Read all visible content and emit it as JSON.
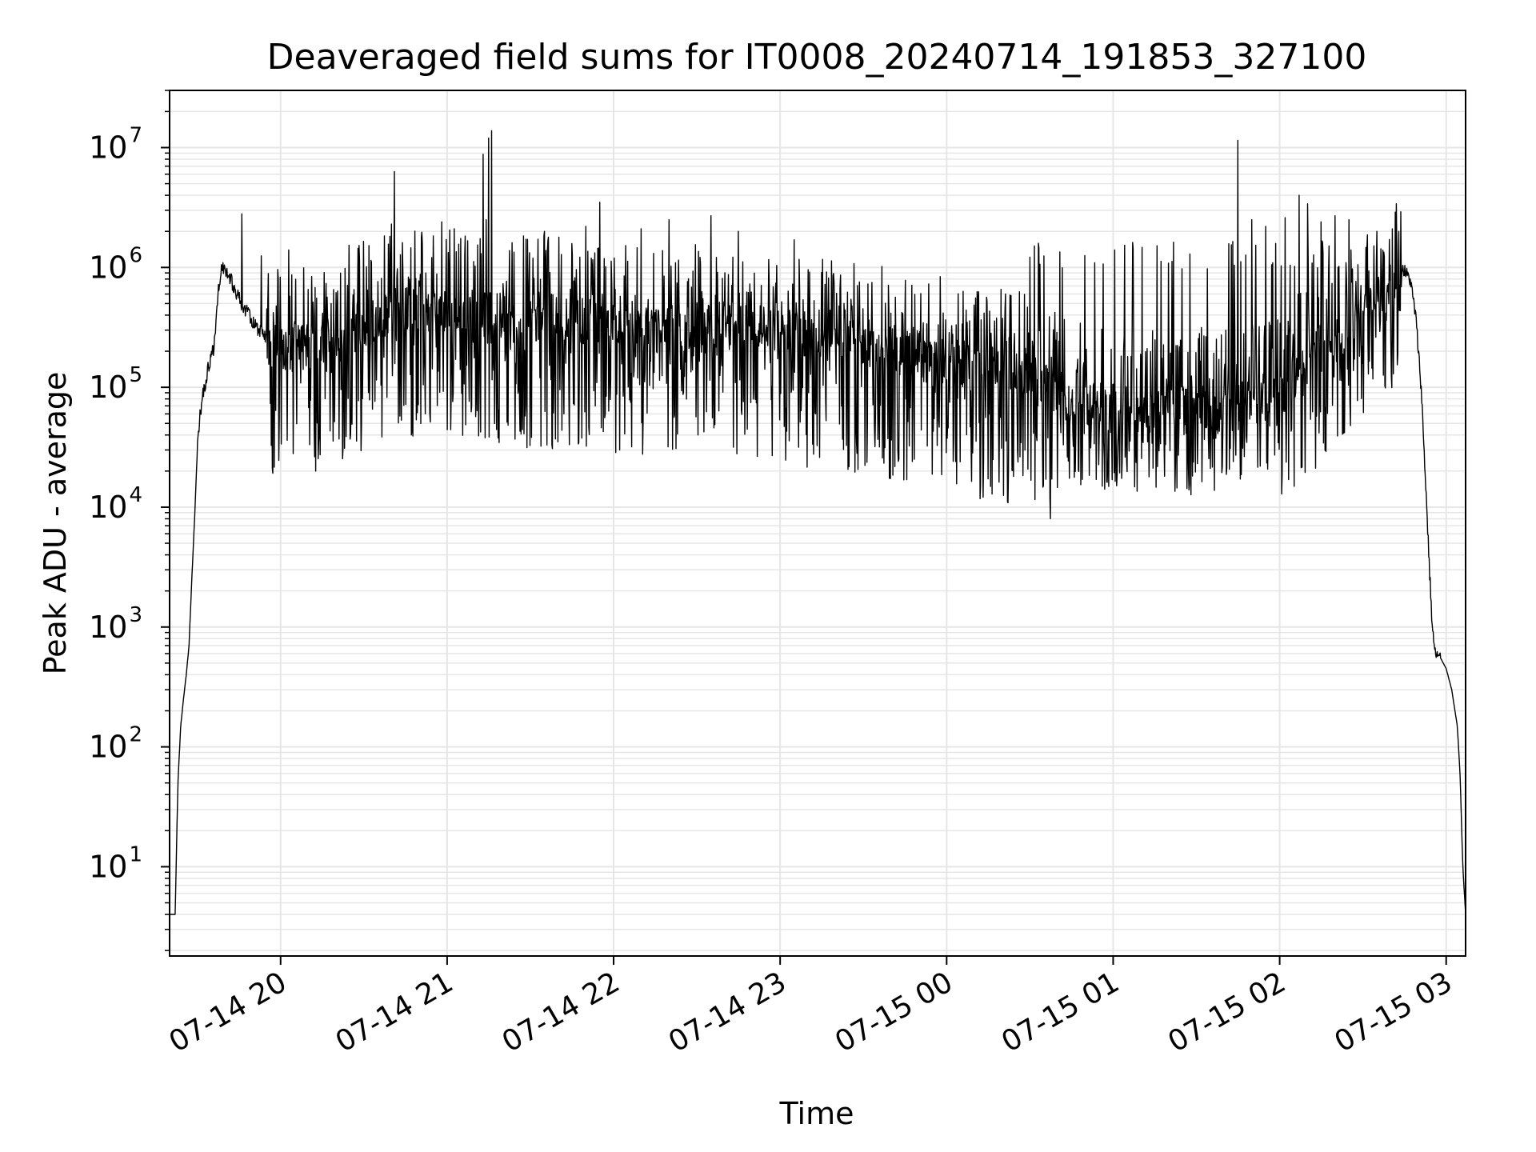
{
  "chart_data": {
    "type": "line",
    "title": "Deaveraged field sums for IT0008_20240714_191853_327100",
    "xlabel": "Time",
    "ylabel": "Peak ADU - average",
    "yscale": "log",
    "xlim": [
      "2024-07-14 19:20",
      "2024-07-15 03:07"
    ],
    "ylim": [
      1.8,
      30000000
    ],
    "x_ticks": [
      "2024-07-14 20:00",
      "2024-07-14 21:00",
      "2024-07-14 22:00",
      "2024-07-14 23:00",
      "2024-07-15 00:00",
      "2024-07-15 01:00",
      "2024-07-15 02:00",
      "2024-07-15 03:00"
    ],
    "x_tick_labels": [
      "07-14 20",
      "07-14 21",
      "07-14 22",
      "07-14 23",
      "07-15 00",
      "07-15 01",
      "07-15 02",
      "07-15 03"
    ],
    "y_ticks": [
      10,
      100,
      1000,
      10000,
      100000,
      1000000,
      10000000
    ],
    "y_tick_labels": [
      {
        "base": "10",
        "exp": "1"
      },
      {
        "base": "10",
        "exp": "2"
      },
      {
        "base": "10",
        "exp": "3"
      },
      {
        "base": "10",
        "exp": "4"
      },
      {
        "base": "10",
        "exp": "5"
      },
      {
        "base": "10",
        "exp": "6"
      },
      {
        "base": "10",
        "exp": "7"
      }
    ],
    "grid": true,
    "line_color": "#000000",
    "grid_color": "#e6e6e6",
    "series": [
      {
        "baseline": [
          [
            "2024-07-14 19:20",
            4
          ],
          [
            "2024-07-14 19:22",
            4
          ],
          [
            "2024-07-14 19:23",
            50
          ],
          [
            "2024-07-14 19:24",
            150
          ],
          [
            "2024-07-14 19:25",
            250
          ],
          [
            "2024-07-14 19:26",
            400
          ],
          [
            "2024-07-14 19:27",
            700
          ],
          [
            "2024-07-14 19:28",
            2500
          ],
          [
            "2024-07-14 19:29",
            8000
          ],
          [
            "2024-07-14 19:30",
            30000
          ],
          [
            "2024-07-14 19:31",
            60000
          ],
          [
            "2024-07-14 19:32",
            85000
          ],
          [
            "2024-07-14 19:33",
            110000
          ],
          [
            "2024-07-14 19:34",
            150000
          ],
          [
            "2024-07-14 19:35",
            180000
          ],
          [
            "2024-07-14 19:36",
            220000
          ],
          [
            "2024-07-14 19:37",
            450000
          ],
          [
            "2024-07-14 19:38",
            800000
          ],
          [
            "2024-07-14 19:39",
            1000000
          ],
          [
            "2024-07-14 19:41",
            900000
          ],
          [
            "2024-07-14 19:43",
            700000
          ],
          [
            "2024-07-14 19:46",
            500000
          ],
          [
            "2024-07-14 19:50",
            350000
          ],
          [
            "2024-07-14 19:55",
            250000
          ],
          [
            "2024-07-14 20:00",
            200000
          ],
          [
            "2024-07-14 20:15",
            250000
          ],
          [
            "2024-07-14 20:30",
            350000
          ],
          [
            "2024-07-14 20:45",
            450000
          ],
          [
            "2024-07-14 21:00",
            450000
          ],
          [
            "2024-07-14 21:30",
            380000
          ],
          [
            "2024-07-14 22:00",
            350000
          ],
          [
            "2024-07-14 22:30",
            320000
          ],
          [
            "2024-07-14 23:00",
            300000
          ],
          [
            "2024-07-14 23:30",
            220000
          ],
          [
            "2024-07-15 00:00",
            170000
          ],
          [
            "2024-07-15 00:30",
            120000
          ],
          [
            "2024-07-15 00:45",
            80000
          ],
          [
            "2024-07-15 01:00",
            65000
          ],
          [
            "2024-07-15 01:20",
            60000
          ],
          [
            "2024-07-15 01:40",
            65000
          ],
          [
            "2024-07-15 02:00",
            90000
          ],
          [
            "2024-07-15 02:15",
            180000
          ],
          [
            "2024-07-15 02:30",
            400000
          ],
          [
            "2024-07-15 02:40",
            700000
          ],
          [
            "2024-07-15 02:44",
            1000000
          ],
          [
            "2024-07-15 02:47",
            800000
          ],
          [
            "2024-07-15 02:49",
            400000
          ],
          [
            "2024-07-15 02:51",
            100000
          ],
          [
            "2024-07-15 02:53",
            10000
          ],
          [
            "2024-07-15 02:54",
            3000
          ],
          [
            "2024-07-15 02:55",
            1000
          ],
          [
            "2024-07-15 02:56",
            600
          ],
          [
            "2024-07-15 02:58",
            550
          ],
          [
            "2024-07-15 03:00",
            450
          ],
          [
            "2024-07-15 03:02",
            300
          ],
          [
            "2024-07-15 03:04",
            150
          ],
          [
            "2024-07-15 03:05",
            60
          ],
          [
            "2024-07-15 03:06",
            10
          ],
          [
            "2024-07-15 03:07",
            4
          ]
        ],
        "spikes": [
          [
            "2024-07-14 19:46",
            2800000
          ],
          [
            "2024-07-14 19:53",
            1250000
          ],
          [
            "2024-07-14 20:03",
            1400000
          ],
          [
            "2024-07-14 20:40",
            2300000
          ],
          [
            "2024-07-14 20:41",
            6300000
          ],
          [
            "2024-07-14 20:58",
            2400000
          ],
          [
            "2024-07-14 21:13",
            8800000
          ],
          [
            "2024-07-14 21:14",
            2500000
          ],
          [
            "2024-07-14 21:15",
            12000000
          ],
          [
            "2024-07-14 21:16",
            13800000
          ],
          [
            "2024-07-14 21:35",
            2000000
          ],
          [
            "2024-07-14 21:50",
            2200000
          ],
          [
            "2024-07-14 21:55",
            3500000
          ],
          [
            "2024-07-14 22:10",
            2100000
          ],
          [
            "2024-07-14 22:20",
            2500000
          ],
          [
            "2024-07-14 22:35",
            2700000
          ],
          [
            "2024-07-14 22:45",
            2000000
          ],
          [
            "2024-07-14 23:05",
            1700000
          ],
          [
            "2024-07-15 01:45",
            11500000
          ],
          [
            "2024-07-15 01:50",
            2500000
          ],
          [
            "2024-07-15 01:55",
            2200000
          ],
          [
            "2024-07-15 02:02",
            2600000
          ],
          [
            "2024-07-15 02:07",
            4000000
          ],
          [
            "2024-07-15 02:10",
            3400000
          ],
          [
            "2024-07-15 02:15",
            2400000
          ],
          [
            "2024-07-15 02:20",
            2700000
          ],
          [
            "2024-07-15 02:25",
            2500000
          ],
          [
            "2024-07-15 02:35",
            2000000
          ],
          [
            "2024-07-15 02:42",
            3400000
          ],
          [
            "2024-07-15 02:43",
            2000000
          ]
        ]
      }
    ]
  }
}
